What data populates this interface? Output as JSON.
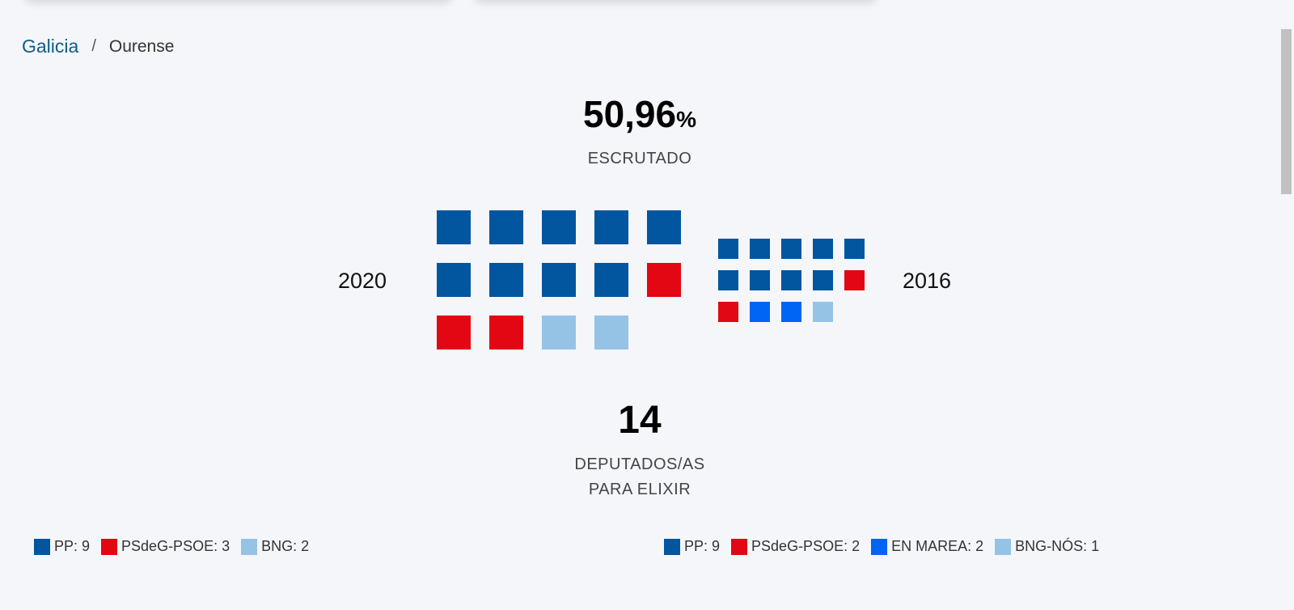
{
  "breadcrumb": {
    "parent": "Galicia",
    "separator": "/",
    "current": "Ourense"
  },
  "scrutiny": {
    "value": "50,96",
    "unit": "%",
    "label": "ESCRUTADO"
  },
  "seats": {
    "value": "14",
    "label_line1": "DEPUTADOS/AS",
    "label_line2": "PARA ELIXIR"
  },
  "colors": {
    "PP": "#02559f",
    "PSdeG-PSOE": "#e30613",
    "BNG": "#95c3e6",
    "EN MAREA": "#0064f5",
    "BNG-NÓS": "#95c3e6"
  },
  "years": {
    "current": "2020",
    "previous": "2016"
  },
  "results_2020": [
    {
      "party": "PP",
      "seats": 9,
      "label": "PP: 9"
    },
    {
      "party": "PSdeG-PSOE",
      "seats": 3,
      "label": "PSdeG-PSOE: 3"
    },
    {
      "party": "BNG",
      "seats": 2,
      "label": "BNG: 2"
    }
  ],
  "results_2016": [
    {
      "party": "PP",
      "seats": 9,
      "label": "PP: 9"
    },
    {
      "party": "PSdeG-PSOE",
      "seats": 2,
      "label": "PSdeG-PSOE: 2"
    },
    {
      "party": "EN MAREA",
      "seats": 2,
      "label": "EN MAREA: 2"
    },
    {
      "party": "BNG-NÓS",
      "seats": 1,
      "label": "BNG-NÓS: 1"
    }
  ]
}
